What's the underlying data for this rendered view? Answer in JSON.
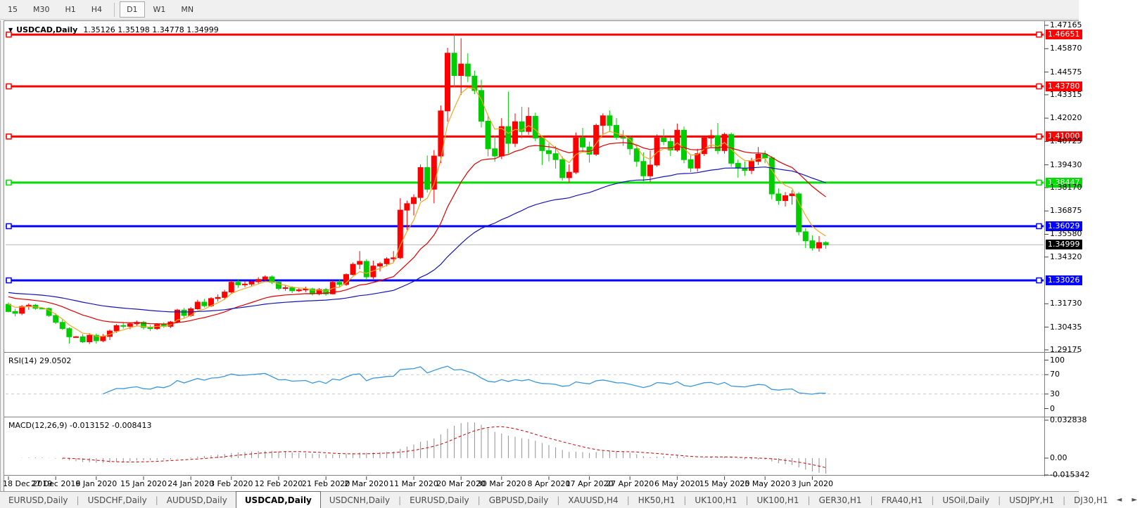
{
  "toolbar": {
    "timeframes": [
      "15",
      "M30",
      "H1",
      "H4",
      "D1",
      "W1",
      "MN"
    ],
    "active": "D1",
    "separator_after": "H4"
  },
  "header": {
    "dropdown_icon": "▼",
    "symbol": "USDCAD,Daily",
    "quote": "1.35126 1.35198 1.34778 1.34999"
  },
  "price_axis": {
    "ticks": [
      1.47165,
      1.4587,
      1.44575,
      1.43315,
      1.4202,
      1.40725,
      1.3943,
      1.3817,
      1.36875,
      1.3558,
      1.3432,
      1.3173,
      1.30435,
      1.29175
    ],
    "current": {
      "label": "1.34999",
      "value": 1.34999,
      "bg": "#000000",
      "fg": "#ffffff",
      "line_color": "#b8b8b8"
    }
  },
  "levels": [
    {
      "label": "1.46651",
      "value": 1.46651,
      "color": "#ff0000"
    },
    {
      "label": "1.43780",
      "value": 1.4378,
      "color": "#ff0000"
    },
    {
      "label": "1.41000",
      "value": 1.41,
      "color": "#ff0000"
    },
    {
      "label": "1.38447",
      "value": 1.38447,
      "color": "#00dd00"
    },
    {
      "label": "1.36029",
      "value": 1.36029,
      "color": "#0000ff"
    },
    {
      "label": "1.33026",
      "value": 1.33026,
      "color": "#0000ff"
    }
  ],
  "rsi": {
    "label": "RSI(14) 29.0502",
    "period": 14,
    "value": 29.0502,
    "overbought": 70,
    "oversold": 30,
    "scale_labels": [
      {
        "text": "100",
        "value": 100
      },
      {
        "text": "70",
        "value": 70
      },
      {
        "text": "30",
        "value": 30
      },
      {
        "text": "0",
        "value": 0
      }
    ],
    "color": "#3a96dd",
    "level_color": "#c8c8c8"
  },
  "macd": {
    "label": "MACD(12,26,9) -0.013152 -0.008413",
    "fast": 12,
    "slow": 26,
    "signal": 9,
    "main_value": -0.013152,
    "signal_value": -0.008413,
    "scale_labels": [
      {
        "text": "0.032838",
        "value": 0.032838
      },
      {
        "text": "0.00",
        "value": 0
      },
      {
        "text": "-0.015342",
        "value": -0.015342
      }
    ],
    "hist_color": "#909090",
    "signal_color": "#cc0000"
  },
  "moving_averages": [
    {
      "type": "ema",
      "period": 5,
      "color": "#f5a623",
      "seed": 1.317
    },
    {
      "type": "ema",
      "period": 20,
      "color": "#dd0000",
      "seed": 1.3212
    },
    {
      "type": "ema",
      "period": 55,
      "color": "#1414b8",
      "seed": 1.3235
    }
  ],
  "x_axis": {
    "ticks": [
      {
        "label": "18 Dec 2019",
        "index": 0
      },
      {
        "label": "27 Dec 2019",
        "index": 7
      },
      {
        "label": "6 Jan 2020",
        "index": 13
      },
      {
        "label": "15 Jan 2020",
        "index": 20
      },
      {
        "label": "24 Jan 2020",
        "index": 27
      },
      {
        "label": "3 Feb 2020",
        "index": 33
      },
      {
        "label": "12 Feb 2020",
        "index": 40
      },
      {
        "label": "21 Feb 2020",
        "index": 47
      },
      {
        "label": "2 Mar 2020",
        "index": 53
      },
      {
        "label": "11 Mar 2020",
        "index": 60
      },
      {
        "label": "20 Mar 2020",
        "index": 67
      },
      {
        "label": "30 Mar 2020",
        "index": 73
      },
      {
        "label": "8 Apr 2020",
        "index": 80
      },
      {
        "label": "17 Apr 2020",
        "index": 86
      },
      {
        "label": "27 Apr 2020",
        "index": 92
      },
      {
        "label": "6 May 2020",
        "index": 99
      },
      {
        "label": "15 May 2020",
        "index": 106
      },
      {
        "label": "25 May 2020",
        "index": 112
      },
      {
        "label": "3 Jun 2020",
        "index": 119
      }
    ]
  },
  "tabs": {
    "items": [
      "EURUSD,Daily",
      "USDCHF,Daily",
      "AUDUSD,Daily",
      "USDCAD,Daily",
      "USDCNH,Daily",
      "EURUSD,Daily",
      "GBPUSD,Daily",
      "XAUUSD,H4",
      "HK50,H1",
      "UK100,H1",
      "UK100,H1",
      "GER30,H1",
      "FRA40,H1",
      "USOil,Daily",
      "USDJPY,H1",
      "DJ30,H1"
    ],
    "active_index": 3,
    "scroll_left_icon": "◄",
    "scroll_right_icon": "►"
  },
  "chart_data": {
    "type": "candlestick",
    "symbol": "USDCAD",
    "timeframe": "Daily",
    "up_color": "#ff0000",
    "down_color": "#00cc00",
    "ylim": [
      1.29055,
      1.474
    ],
    "dates": [
      "2019.12.18",
      "2019.12.19",
      "2019.12.20",
      "2019.12.23",
      "2019.12.24",
      "2019.12.25",
      "2019.12.26",
      "2019.12.27",
      "2019.12.30",
      "2019.12.31",
      "2020.01.01",
      "2020.01.02",
      "2020.01.03",
      "2020.01.06",
      "2020.01.07",
      "2020.01.08",
      "2020.01.09",
      "2020.01.10",
      "2020.01.13",
      "2020.01.14",
      "2020.01.15",
      "2020.01.16",
      "2020.01.17",
      "2020.01.20",
      "2020.01.21",
      "2020.01.22",
      "2020.01.23",
      "2020.01.24",
      "2020.01.27",
      "2020.01.28",
      "2020.01.29",
      "2020.01.30",
      "2020.01.31",
      "2020.02.03",
      "2020.02.04",
      "2020.02.05",
      "2020.02.06",
      "2020.02.07",
      "2020.02.10",
      "2020.02.11",
      "2020.02.12",
      "2020.02.13",
      "2020.02.14",
      "2020.02.17",
      "2020.02.18",
      "2020.02.19",
      "2020.02.20",
      "2020.02.21",
      "2020.02.24",
      "2020.02.25",
      "2020.02.26",
      "2020.02.27",
      "2020.02.28",
      "2020.03.02",
      "2020.03.03",
      "2020.03.04",
      "2020.03.05",
      "2020.03.06",
      "2020.03.09",
      "2020.03.10",
      "2020.03.11",
      "2020.03.12",
      "2020.03.13",
      "2020.03.16",
      "2020.03.17",
      "2020.03.18",
      "2020.03.19",
      "2020.03.20",
      "2020.03.23",
      "2020.03.24",
      "2020.03.25",
      "2020.03.26",
      "2020.03.27",
      "2020.03.30",
      "2020.03.31",
      "2020.04.01",
      "2020.04.02",
      "2020.04.03",
      "2020.04.06",
      "2020.04.07",
      "2020.04.08",
      "2020.04.09",
      "2020.04.13",
      "2020.04.14",
      "2020.04.15",
      "2020.04.16",
      "2020.04.17",
      "2020.04.20",
      "2020.04.21",
      "2020.04.22",
      "2020.04.23",
      "2020.04.24",
      "2020.04.27",
      "2020.04.28",
      "2020.04.29",
      "2020.04.30",
      "2020.05.01",
      "2020.05.04",
      "2020.05.05",
      "2020.05.06",
      "2020.05.07",
      "2020.05.08",
      "2020.05.11",
      "2020.05.12",
      "2020.05.13",
      "2020.05.14",
      "2020.05.15",
      "2020.05.18",
      "2020.05.19",
      "2020.05.20",
      "2020.05.21",
      "2020.05.22",
      "2020.05.25",
      "2020.05.26",
      "2020.05.27",
      "2020.05.28",
      "2020.05.29",
      "2020.06.01",
      "2020.06.02",
      "2020.06.03",
      "2020.06.04",
      "2020.06.05"
    ],
    "ohlc": [
      [
        1.317,
        1.318,
        1.3125,
        1.313
      ],
      [
        1.313,
        1.3145,
        1.3103,
        1.312
      ],
      [
        1.312,
        1.3165,
        1.311,
        1.3158
      ],
      [
        1.3158,
        1.3175,
        1.314,
        1.3165
      ],
      [
        1.3165,
        1.3172,
        1.314,
        1.3148
      ],
      [
        1.3148,
        1.3152,
        1.3144,
        1.3147
      ],
      [
        1.3147,
        1.3152,
        1.31,
        1.3108
      ],
      [
        1.3108,
        1.312,
        1.306,
        1.307
      ],
      [
        1.307,
        1.3085,
        1.3028,
        1.3035
      ],
      [
        1.3035,
        1.3042,
        1.2952,
        1.299
      ],
      [
        1.299,
        1.2994,
        1.2986,
        1.299
      ],
      [
        1.299,
        1.3005,
        1.2955,
        1.2962
      ],
      [
        1.2962,
        1.301,
        1.295,
        1.2998
      ],
      [
        1.2998,
        1.3008,
        1.2952,
        1.2968
      ],
      [
        1.2968,
        1.3005,
        1.296,
        1.2992
      ],
      [
        1.2992,
        1.303,
        1.2972,
        1.3022
      ],
      [
        1.3022,
        1.306,
        1.3012,
        1.3052
      ],
      [
        1.3052,
        1.3072,
        1.3035,
        1.3048
      ],
      [
        1.3048,
        1.307,
        1.3032,
        1.3062
      ],
      [
        1.3062,
        1.308,
        1.3048,
        1.307
      ],
      [
        1.307,
        1.3078,
        1.303,
        1.3042
      ],
      [
        1.3042,
        1.3055,
        1.3022,
        1.3035
      ],
      [
        1.3035,
        1.3065,
        1.3028,
        1.3058
      ],
      [
        1.3058,
        1.307,
        1.304,
        1.3048
      ],
      [
        1.3048,
        1.3078,
        1.3038,
        1.3072
      ],
      [
        1.3072,
        1.3145,
        1.3065,
        1.3138
      ],
      [
        1.3138,
        1.315,
        1.3095,
        1.3108
      ],
      [
        1.3108,
        1.3155,
        1.31,
        1.3145
      ],
      [
        1.3145,
        1.3195,
        1.314,
        1.3182
      ],
      [
        1.3182,
        1.32,
        1.3152,
        1.3162
      ],
      [
        1.3162,
        1.321,
        1.3155,
        1.3202
      ],
      [
        1.3202,
        1.3225,
        1.3185,
        1.3208
      ],
      [
        1.3208,
        1.325,
        1.3195,
        1.3238
      ],
      [
        1.3238,
        1.3302,
        1.323,
        1.3292
      ],
      [
        1.3292,
        1.3305,
        1.3262,
        1.3278
      ],
      [
        1.3278,
        1.33,
        1.3265,
        1.3282
      ],
      [
        1.3282,
        1.3302,
        1.327,
        1.3295
      ],
      [
        1.3295,
        1.332,
        1.3282,
        1.3308
      ],
      [
        1.3308,
        1.333,
        1.3295,
        1.3322
      ],
      [
        1.3322,
        1.333,
        1.3282,
        1.3292
      ],
      [
        1.3292,
        1.3302,
        1.3248,
        1.3258
      ],
      [
        1.3258,
        1.3275,
        1.3245,
        1.3262
      ],
      [
        1.3262,
        1.327,
        1.3232,
        1.3245
      ],
      [
        1.3245,
        1.3258,
        1.3238,
        1.325
      ],
      [
        1.325,
        1.3268,
        1.3238,
        1.3255
      ],
      [
        1.3255,
        1.3262,
        1.3218,
        1.3228
      ],
      [
        1.3228,
        1.326,
        1.322,
        1.3252
      ],
      [
        1.3252,
        1.326,
        1.3218,
        1.3228
      ],
      [
        1.3228,
        1.3302,
        1.3225,
        1.3292
      ],
      [
        1.3292,
        1.3305,
        1.3262,
        1.328
      ],
      [
        1.328,
        1.3342,
        1.3272,
        1.3335
      ],
      [
        1.3335,
        1.3402,
        1.333,
        1.3392
      ],
      [
        1.3392,
        1.3465,
        1.3365,
        1.3408
      ],
      [
        1.3408,
        1.342,
        1.3305,
        1.3322
      ],
      [
        1.3322,
        1.3412,
        1.331,
        1.3382
      ],
      [
        1.3382,
        1.3405,
        1.3352,
        1.3395
      ],
      [
        1.3395,
        1.3432,
        1.338,
        1.3422
      ],
      [
        1.3422,
        1.3465,
        1.3405,
        1.3428
      ],
      [
        1.3428,
        1.3758,
        1.342,
        1.3692
      ],
      [
        1.3692,
        1.3745,
        1.3582,
        1.3728
      ],
      [
        1.3728,
        1.378,
        1.3662,
        1.3762
      ],
      [
        1.3762,
        1.3945,
        1.3742,
        1.3928
      ],
      [
        1.3928,
        1.3995,
        1.379,
        1.3808
      ],
      [
        1.3808,
        1.4025,
        1.373,
        1.3992
      ],
      [
        1.3992,
        1.4272,
        1.3952,
        1.4242
      ],
      [
        1.4242,
        1.4592,
        1.4182,
        1.4562
      ],
      [
        1.4562,
        1.4669,
        1.4372,
        1.4438
      ],
      [
        1.4438,
        1.4645,
        1.433,
        1.4502
      ],
      [
        1.4502,
        1.4562,
        1.4402,
        1.4435
      ],
      [
        1.4435,
        1.4465,
        1.4335,
        1.4355
      ],
      [
        1.4355,
        1.4415,
        1.415,
        1.4185
      ],
      [
        1.4185,
        1.4212,
        1.399,
        1.4032
      ],
      [
        1.4032,
        1.4105,
        1.396,
        1.3992
      ],
      [
        1.3992,
        1.4202,
        1.3975,
        1.4155
      ],
      [
        1.4155,
        1.4349,
        1.4005,
        1.4062
      ],
      [
        1.4062,
        1.4228,
        1.4042,
        1.4182
      ],
      [
        1.4182,
        1.4265,
        1.409,
        1.4128
      ],
      [
        1.4128,
        1.4262,
        1.411,
        1.4212
      ],
      [
        1.4212,
        1.4232,
        1.4075,
        1.4092
      ],
      [
        1.4092,
        1.4105,
        1.3942,
        1.4022
      ],
      [
        1.4022,
        1.4062,
        1.3962,
        1.4005
      ],
      [
        1.4005,
        1.4048,
        1.3922,
        1.3972
      ],
      [
        1.3972,
        1.399,
        1.3855,
        1.3872
      ],
      [
        1.3872,
        1.3945,
        1.3845,
        1.3902
      ],
      [
        1.3902,
        1.4122,
        1.3892,
        1.4092
      ],
      [
        1.4092,
        1.4148,
        1.4012,
        1.4042
      ],
      [
        1.4042,
        1.4072,
        1.3955,
        1.4002
      ],
      [
        1.4002,
        1.4172,
        1.3992,
        1.4162
      ],
      [
        1.4162,
        1.4228,
        1.4112,
        1.4215
      ],
      [
        1.4215,
        1.4245,
        1.4125,
        1.4162
      ],
      [
        1.4162,
        1.4202,
        1.4082,
        1.4095
      ],
      [
        1.4095,
        1.4135,
        1.4048,
        1.4092
      ],
      [
        1.4092,
        1.4105,
        1.3998,
        1.4032
      ],
      [
        1.4032,
        1.4052,
        1.3932,
        1.3962
      ],
      [
        1.3962,
        1.4012,
        1.3852,
        1.3882
      ],
      [
        1.3882,
        1.4022,
        1.3848,
        1.3942
      ],
      [
        1.3942,
        1.4112,
        1.3932,
        1.4092
      ],
      [
        1.4092,
        1.4142,
        1.4052,
        1.4072
      ],
      [
        1.4072,
        1.4095,
        1.3992,
        1.4025
      ],
      [
        1.4025,
        1.4172,
        1.4015,
        1.4135
      ],
      [
        1.4135,
        1.4155,
        1.3952,
        1.3972
      ],
      [
        1.3972,
        1.4002,
        1.3902,
        1.3925
      ],
      [
        1.3925,
        1.4032,
        1.3905,
        1.4005
      ],
      [
        1.4005,
        1.4102,
        1.3992,
        1.4092
      ],
      [
        1.4092,
        1.4138,
        1.4042,
        1.4105
      ],
      [
        1.4105,
        1.4175,
        1.4002,
        1.4022
      ],
      [
        1.4022,
        1.4122,
        1.4005,
        1.4112
      ],
      [
        1.4112,
        1.4122,
        1.3932,
        1.3952
      ],
      [
        1.3952,
        1.3972,
        1.3872,
        1.3925
      ],
      [
        1.3925,
        1.3962,
        1.3882,
        1.3912
      ],
      [
        1.3912,
        1.3982,
        1.3892,
        1.3962
      ],
      [
        1.3962,
        1.4042,
        1.3942,
        1.4002
      ],
      [
        1.4002,
        1.4022,
        1.3952,
        1.3982
      ],
      [
        1.3982,
        1.3992,
        1.3752,
        1.3782
      ],
      [
        1.3782,
        1.3812,
        1.3722,
        1.3745
      ],
      [
        1.3745,
        1.3792,
        1.3712,
        1.3772
      ],
      [
        1.3772,
        1.3802,
        1.3722,
        1.3782
      ],
      [
        1.3782,
        1.3792,
        1.3552,
        1.3572
      ],
      [
        1.3572,
        1.3592,
        1.3482,
        1.3522
      ],
      [
        1.3522,
        1.3552,
        1.3468,
        1.3482
      ],
      [
        1.3482,
        1.3548,
        1.3462,
        1.3512
      ],
      [
        1.35126,
        1.35198,
        1.34778,
        1.34999
      ]
    ]
  }
}
